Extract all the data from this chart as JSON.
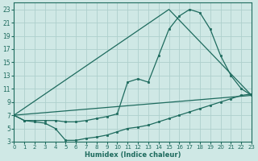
{
  "xlabel": "Humidex (Indice chaleur)",
  "xlim": [
    0,
    23
  ],
  "ylim": [
    3,
    24
  ],
  "xticks": [
    0,
    1,
    2,
    3,
    4,
    5,
    6,
    7,
    8,
    9,
    10,
    11,
    12,
    13,
    14,
    15,
    16,
    17,
    18,
    19,
    20,
    21,
    22,
    23
  ],
  "yticks": [
    3,
    5,
    7,
    9,
    11,
    13,
    15,
    17,
    19,
    21,
    23
  ],
  "bg_color": "#cfe8e5",
  "grid_color": "#aed0cc",
  "line_color": "#1e6b5e",
  "curve1_x": [
    0,
    1,
    2,
    3,
    4,
    5,
    6,
    7,
    8,
    9,
    10,
    11,
    12,
    13,
    14,
    15,
    16,
    17,
    18,
    19,
    20,
    21,
    22,
    23
  ],
  "curve1_y": [
    7,
    6.2,
    6.2,
    6.2,
    6.2,
    6.0,
    6.0,
    6.2,
    6.5,
    6.8,
    7.2,
    12,
    12.5,
    12,
    16,
    20,
    22,
    23,
    22.5,
    20,
    16,
    13,
    11,
    10
  ],
  "curve2_x": [
    0,
    1,
    2,
    3,
    4,
    5,
    6,
    7,
    8,
    9,
    10,
    11,
    12,
    13,
    14,
    15,
    16,
    17,
    18,
    19,
    20,
    21,
    22,
    23
  ],
  "curve2_y": [
    7,
    6.2,
    6.0,
    5.8,
    5.0,
    3.2,
    3.2,
    3.5,
    3.7,
    4.0,
    4.5,
    5.0,
    5.2,
    5.5,
    6.0,
    6.5,
    7.0,
    7.5,
    8.0,
    8.5,
    9.0,
    9.5,
    10.0,
    10.2
  ],
  "line3_x": [
    0,
    15,
    23
  ],
  "line3_y": [
    7,
    23,
    10
  ],
  "line4_x": [
    0,
    23
  ],
  "line4_y": [
    7,
    10
  ]
}
